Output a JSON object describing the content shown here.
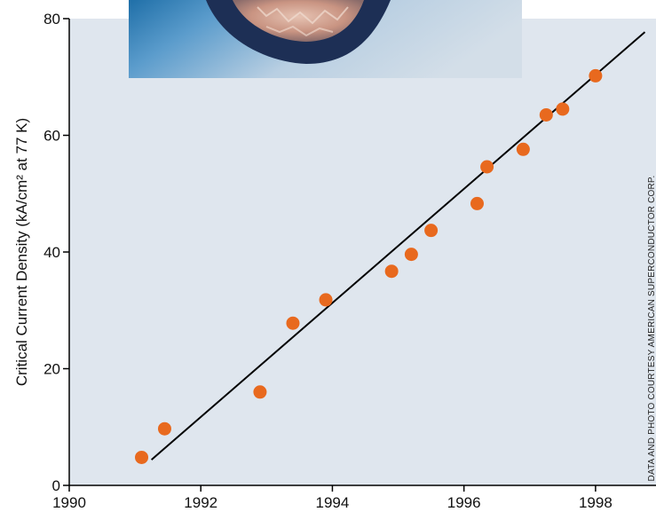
{
  "chart_data": {
    "type": "scatter",
    "ylabel": "Critical Current Density (kA/cm² at 77 K)",
    "xlabel": "",
    "xlim": [
      1990,
      1999
    ],
    "ylim": [
      0,
      80
    ],
    "x_ticks": [
      "1990",
      "1992",
      "1994",
      "1996",
      "1998"
    ],
    "y_ticks": [
      "0",
      "20",
      "40",
      "60",
      "80"
    ],
    "grid": false,
    "colors": {
      "points": "#e8691e",
      "line": "#000000",
      "plot_bg": "#dfe6ee"
    },
    "series": [
      {
        "points": [
          {
            "x": 1991.1,
            "y": 4.8
          },
          {
            "x": 1991.45,
            "y": 9.7
          },
          {
            "x": 1992.9,
            "y": 16.0
          },
          {
            "x": 1993.4,
            "y": 27.8
          },
          {
            "x": 1993.9,
            "y": 31.8
          },
          {
            "x": 1994.9,
            "y": 36.7
          },
          {
            "x": 1995.2,
            "y": 39.6
          },
          {
            "x": 1995.5,
            "y": 43.7
          },
          {
            "x": 1996.2,
            "y": 48.3
          },
          {
            "x": 1996.35,
            "y": 54.6
          },
          {
            "x": 1996.9,
            "y": 57.6
          },
          {
            "x": 1997.25,
            "y": 63.5
          },
          {
            "x": 1997.5,
            "y": 64.5
          },
          {
            "x": 1998.0,
            "y": 70.2
          }
        ]
      }
    ],
    "trend_line": {
      "x": [
        1991.25,
        1998.75
      ],
      "y": [
        4.4,
        77.7
      ]
    }
  },
  "credit": "DATA AND PHOTO COURTESY AMERICAN SUPERCONDUCTOR CORP.",
  "photo": {
    "icon": "superconductor-tape-photo"
  }
}
